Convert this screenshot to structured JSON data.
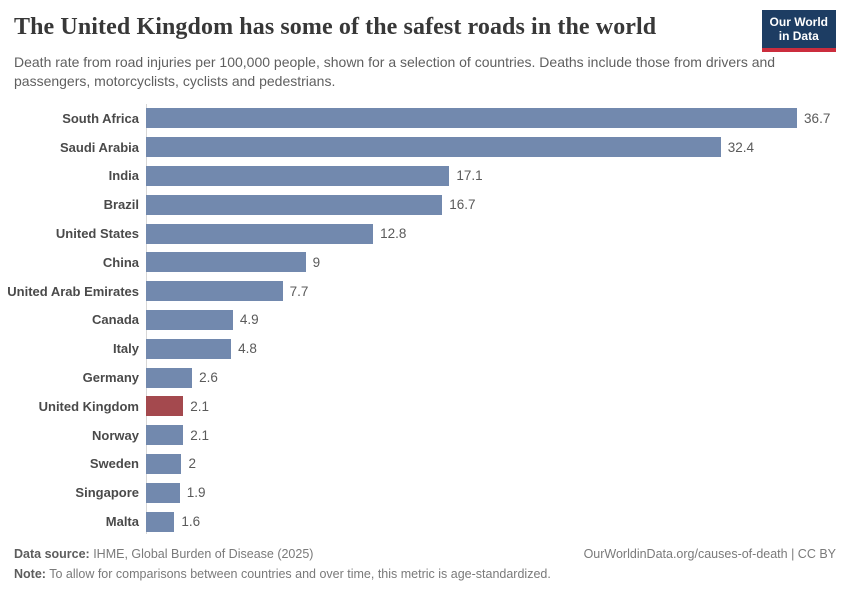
{
  "header": {
    "title": "The United Kingdom has some of the safest roads in the world",
    "subtitle": "Death rate from road injuries per 100,000 people, shown for a selection of countries. Deaths include those from drivers and passengers, motorcyclists, cyclists and pedestrians.",
    "logo": {
      "line1": "Our World",
      "line2": "in Data",
      "bg_color": "#1d3d63",
      "stripe_color": "#cb2d3d"
    }
  },
  "chart_data": {
    "type": "bar",
    "orientation": "horizontal",
    "title": "The United Kingdom has some of the safest roads in the world",
    "xlabel": "Death rate from road injuries per 100,000 people",
    "xlim": [
      0,
      38.9
    ],
    "grid": false,
    "legend": "none",
    "categories": [
      "South Africa",
      "Saudi Arabia",
      "India",
      "Brazil",
      "United States",
      "China",
      "United Arab Emirates",
      "Canada",
      "Italy",
      "Germany",
      "United Kingdom",
      "Norway",
      "Sweden",
      "Singapore",
      "Malta"
    ],
    "values": [
      36.7,
      32.4,
      17.1,
      16.7,
      12.8,
      9,
      7.7,
      4.9,
      4.8,
      2.6,
      2.1,
      2.1,
      2,
      1.9,
      1.6
    ],
    "value_labels": [
      "36.7",
      "32.4",
      "17.1",
      "16.7",
      "12.8",
      "9",
      "7.7",
      "4.9",
      "4.8",
      "2.6",
      "2.1",
      "2.1",
      "2",
      "1.9",
      "1.6"
    ],
    "highlight_category": "United Kingdom",
    "bar_color": "#7289ae",
    "highlight_color": "#a4494e",
    "axis_line_color": "#d7d7d7"
  },
  "footer": {
    "source_label": "Data source:",
    "source_text": " IHME, Global Burden of Disease (2025)",
    "credit": "OurWorldinData.org/causes-of-death | CC BY",
    "note_label": "Note:",
    "note_text": " To allow for comparisons between countries and over time, this metric is age-standardized."
  }
}
